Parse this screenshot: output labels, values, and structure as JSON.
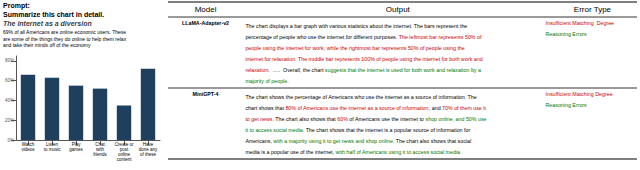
{
  "chart_data": {
    "type": "bar",
    "title": "The internet as a diversion",
    "subtitle": "69% of all Americans are online economic users. These\nare some of the things they do online to help them relax\nand take their minds off of the economy",
    "categories": [
      "Watch\nvideos",
      "Listen\nto music",
      "Play\ngames",
      "Chat\nwith\nfriends",
      "Create or\npost\nonline\ncontent",
      "Have\ndone any\nof these"
    ],
    "values": [
      0.66,
      0.63,
      0.55,
      0.52,
      0.35,
      0.72
    ],
    "color": "#1f3f5f",
    "ylim": [
      0,
      0.85
    ],
    "yticks": [
      {
        "value": 0,
        "label": "0%"
      },
      {
        "value": 0.2,
        "label": "20%"
      },
      {
        "value": 0.4,
        "label": "40%"
      },
      {
        "value": 0.6,
        "label": "60%"
      },
      {
        "value": 0.8,
        "label": "80%"
      }
    ],
    "grid": false,
    "annotations": {
      "prompt": [
        "Prompt:",
        "Summarize this chart in detail."
      ],
      "table": {
        "header": [
          "Model",
          "Output",
          "Error Type"
        ],
        "rows": [
          {
            "model": "LLaMA-Adapter-v2",
            "output": [
              {
                "text": "The chart displays a bar graph with various statistics about the internet. The bars represent the",
                "color": "#000000"
              },
              {
                "text": "\npercentage of people who use the internet for different purposes. ",
                "color": "#000000"
              },
              {
                "text": "The leftmost bar represents 50% of",
                "color": "#cc0000"
              },
              {
                "text": "\npeople using the internet for work, while the rightmost bar represents 50% of people using the",
                "color": "#cc0000"
              },
              {
                "text": "\ninternet for relaxation. The middle bar represents 100% of people using the internet for both work and",
                "color": "#cc0000"
              },
              {
                "text": "\nrelaxation.",
                "color": "#cc0000"
              },
              {
                "text": "  .....  Overall, the chart ",
                "color": "#000000"
              },
              {
                "text": "suggests that the internet is used for both work and relaxation by a",
                "color": "#007700"
              },
              {
                "text": "\nmajority of people.",
                "color": "#007700"
              }
            ],
            "error": [
              {
                "text": "Insufficient Matching  Degree",
                "color": "#cc0000"
              },
              {
                "text": "Reasoning Errors",
                "color": "#007700"
              }
            ]
          },
          {
            "model": "MiniGPT-4",
            "output": [
              {
                "text": "The chart shows the percentage of Americans who use the internet as a source of information. The",
                "color": "#000000"
              },
              {
                "text": "\nchart shows that ",
                "color": "#000000"
              },
              {
                "text": "80% of Americans use the internet as a source of information",
                "color": "#cc0000"
              },
              {
                "text": ", and ",
                "color": "#000000"
              },
              {
                "text": "70% of them use it",
                "color": "#cc0000"
              },
              {
                "text": "\nto get news.",
                "color": "#cc0000"
              },
              {
                "text": " The chart also shows that ",
                "color": "#000000"
              },
              {
                "text": "60%",
                "color": "#cc0000"
              },
              {
                "text": " of Americans use the internet to ",
                "color": "#000000"
              },
              {
                "text": "shop online, and 50% use",
                "color": "#007700"
              },
              {
                "text": "\nit to access social media.",
                "color": "#007700"
              },
              {
                "text": " The chart shows that the internet is a popular source of information for",
                "color": "#000000"
              },
              {
                "text": "\nAmericans, ",
                "color": "#000000"
              },
              {
                "text": "with a majority using it to get news and shop online.",
                "color": "#007700"
              },
              {
                "text": " The chart also shows that social",
                "color": "#000000"
              },
              {
                "text": "\nmedia is a popular use of the internet, ",
                "color": "#000000"
              },
              {
                "text": "with half of Americans using it to access social media.",
                "color": "#007700"
              }
            ],
            "error": [
              {
                "text": "Insufficient Matching Degree",
                "color": "#cc0000"
              },
              {
                "text": "Reasoning Errors",
                "color": "#007700"
              }
            ]
          }
        ]
      }
    }
  }
}
